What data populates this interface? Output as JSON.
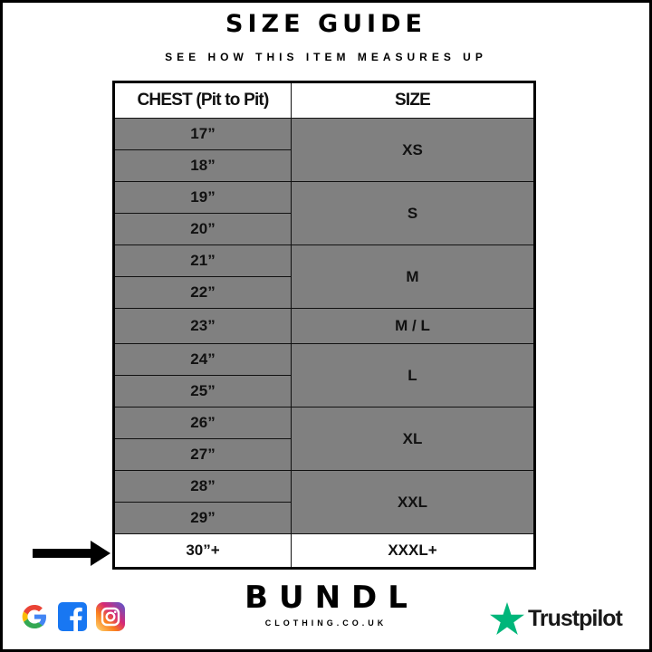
{
  "title": "SIZE GUIDE",
  "subtitle": "SEE HOW THIS ITEM MEASURES UP",
  "table": {
    "headers": [
      "CHEST (Pit to Pit)",
      "SIZE"
    ],
    "rows": [
      {
        "chest": "17”",
        "size": "XS",
        "span": 2
      },
      {
        "chest": "18”"
      },
      {
        "chest": "19”",
        "size": "S",
        "span": 2
      },
      {
        "chest": "20”"
      },
      {
        "chest": "21”",
        "size": "M",
        "span": 2
      },
      {
        "chest": "22”"
      },
      {
        "chest": "23”",
        "size": "M / L",
        "span": 1
      },
      {
        "chest": "24”",
        "size": "L",
        "span": 2
      },
      {
        "chest": "25”"
      },
      {
        "chest": "26”",
        "size": "XL",
        "span": 2
      },
      {
        "chest": "27”"
      },
      {
        "chest": "28”",
        "size": "XXL",
        "span": 2
      },
      {
        "chest": "29”"
      },
      {
        "chest": "30”+",
        "size": "XXXL+",
        "span": 1,
        "highlighted": true
      }
    ]
  },
  "footer": {
    "social_icons": [
      "google-icon",
      "facebook-icon",
      "instagram-icon"
    ],
    "brand": "BUNDL",
    "brand_sub": "CLOTHING.CO.UK",
    "review": "Trustpilot"
  },
  "colors": {
    "row_fill": "#808080",
    "trustpilot": "#00b67a"
  }
}
